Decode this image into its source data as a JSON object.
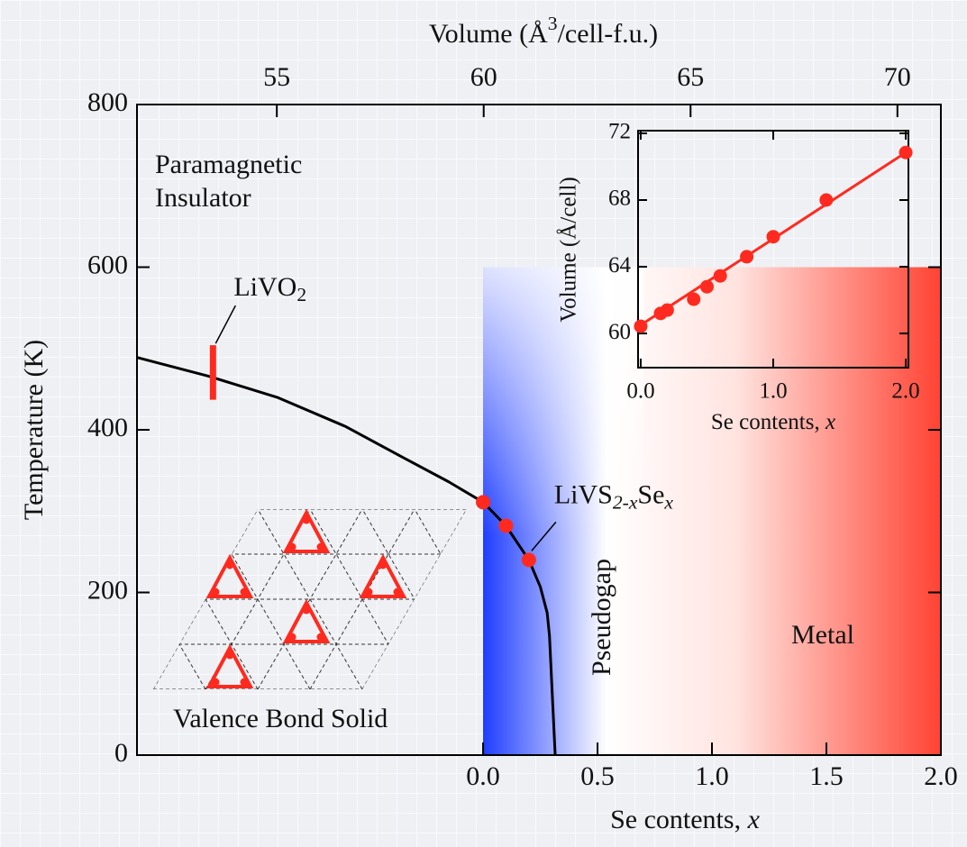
{
  "chart_data": {
    "type": "phase-diagram",
    "x2_label": [
      "Volume (Å",
      "3",
      "/cell-f.u.)"
    ],
    "x_label": [
      "Se contents,  ",
      "x"
    ],
    "y_label": "Temperature (K)",
    "xlim": [
      -1.512,
      2.0
    ],
    "xticks": [
      {
        "value": 0,
        "label": "0.0"
      },
      {
        "value": 0.5,
        "label": "0.5"
      },
      {
        "value": 1,
        "label": "1.0"
      },
      {
        "value": 1.5,
        "label": "1.5"
      },
      {
        "value": 2,
        "label": "2.0"
      }
    ],
    "x2lim": [
      51.62,
      71.05
    ],
    "x2ticks": [
      55,
      60,
      65,
      70
    ],
    "ylim": [
      0,
      800
    ],
    "yticks": [
      0,
      200,
      400,
      600,
      800
    ],
    "boundary": {
      "color": "#000000",
      "x": [
        -1.512,
        -1.2,
        -0.9,
        -0.6,
        -0.35,
        -0.15,
        0,
        0.1,
        0.2,
        0.25,
        0.28,
        0.29,
        0.315
      ],
      "y": [
        489,
        466,
        440,
        404,
        366,
        336,
        311,
        282,
        240,
        207,
        175,
        147,
        0
      ]
    },
    "samples": {
      "label": [
        "LiVS",
        "2-x",
        "Se",
        "x"
      ],
      "color": "#ff2a1f",
      "x": [
        0,
        0.1,
        0.2
      ],
      "y": [
        311,
        282,
        240
      ]
    },
    "livo2": {
      "label": [
        "LiVO",
        "2"
      ],
      "color": "#ff2a1f",
      "x": -1.18,
      "y": [
        437,
        504
      ]
    },
    "shading": {
      "x": [
        0,
        2
      ],
      "y": [
        0,
        600
      ],
      "colors": [
        "#1f3dff",
        "#ffffff",
        "#ff4333"
      ]
    },
    "regions": [
      "Paramagnetic",
      "Insulator",
      "Valence Bond Solid",
      "Pseudogap",
      "Metal"
    ],
    "inset": {
      "type": "scatter",
      "x_label": [
        "Se contents, ",
        "x"
      ],
      "y_label": "Volume (Å/cell)",
      "xlim": [
        -0.02,
        2.02
      ],
      "xticks": [
        {
          "value": 0,
          "label": "0.0"
        },
        {
          "value": 1,
          "label": "1.0"
        },
        {
          "value": 2,
          "label": "2.0"
        }
      ],
      "ylim": [
        57.95,
        72.16
      ],
      "yticks": [
        60,
        64,
        68,
        72
      ],
      "color": "#ff2a1f",
      "x": [
        0,
        0.15,
        0.2,
        0.4,
        0.5,
        0.6,
        0.8,
        1.0,
        1.4,
        2.0
      ],
      "y": [
        60.43,
        61.2,
        61.4,
        62.05,
        62.8,
        63.45,
        64.6,
        65.8,
        68.0,
        70.85
      ],
      "fit": {
        "x": [
          0,
          2
        ],
        "y": [
          60.5,
          70.85
        ]
      }
    }
  }
}
